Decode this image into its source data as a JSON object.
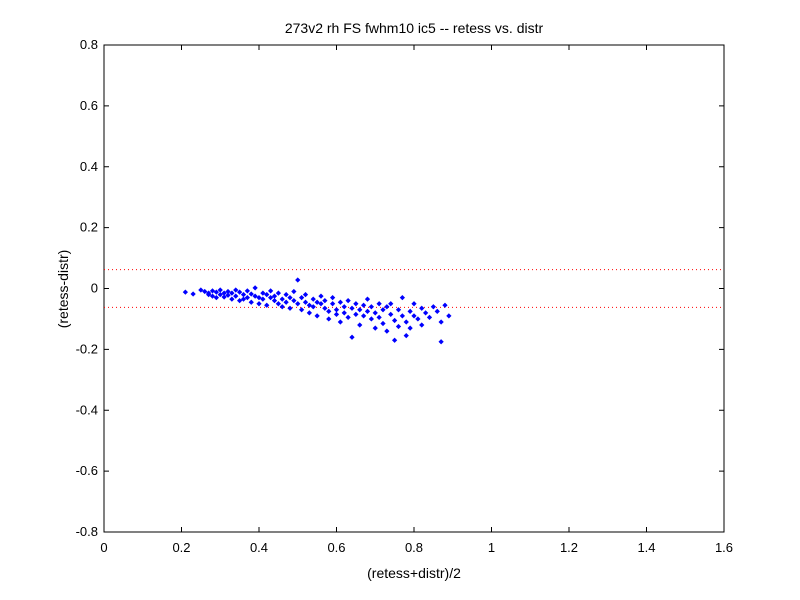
{
  "chart_data": {
    "type": "scatter",
    "title": "273v2 rh FS fwhm10 ic5 -- retess vs. distr",
    "xlabel": "(retess+distr)/2",
    "ylabel": "(retess-distr)",
    "xlim": [
      0,
      1.6
    ],
    "ylim": [
      -0.8,
      0.8
    ],
    "x_ticks": [
      "0",
      "0.2",
      "0.4",
      "0.6",
      "0.8",
      "1",
      "1.2",
      "1.4",
      "1.6"
    ],
    "y_ticks": [
      "0.8",
      "0.6",
      "0.4",
      "0.2",
      "0",
      "-0.2",
      "-0.4",
      "-0.6",
      "-0.8"
    ],
    "marker_color": "#0000ff",
    "reference_line_color": "#ff0000",
    "reference_lines_y": [
      0.062,
      -0.062
    ],
    "grid": false,
    "legend": "none",
    "series": [
      {
        "points": [
          [
            0.21,
            -0.012
          ],
          [
            0.23,
            -0.018
          ],
          [
            0.25,
            -0.005
          ],
          [
            0.26,
            -0.01
          ],
          [
            0.27,
            -0.015
          ],
          [
            0.27,
            -0.02
          ],
          [
            0.28,
            -0.008
          ],
          [
            0.28,
            -0.025
          ],
          [
            0.29,
            -0.012
          ],
          [
            0.29,
            -0.03
          ],
          [
            0.3,
            -0.02
          ],
          [
            0.3,
            -0.005
          ],
          [
            0.31,
            -0.015
          ],
          [
            0.31,
            -0.028
          ],
          [
            0.32,
            -0.01
          ],
          [
            0.32,
            -0.022
          ],
          [
            0.33,
            -0.035
          ],
          [
            0.33,
            -0.015
          ],
          [
            0.34,
            -0.005
          ],
          [
            0.34,
            -0.025
          ],
          [
            0.35,
            -0.04
          ],
          [
            0.35,
            -0.012
          ],
          [
            0.36,
            -0.02
          ],
          [
            0.36,
            -0.035
          ],
          [
            0.37,
            -0.008
          ],
          [
            0.37,
            -0.03
          ],
          [
            0.38,
            -0.045
          ],
          [
            0.38,
            -0.018
          ],
          [
            0.39,
            -0.025
          ],
          [
            0.39,
            0.002
          ],
          [
            0.4,
            -0.03
          ],
          [
            0.4,
            -0.05
          ],
          [
            0.41,
            -0.015
          ],
          [
            0.41,
            -0.035
          ],
          [
            0.42,
            -0.02
          ],
          [
            0.42,
            -0.055
          ],
          [
            0.43,
            -0.03
          ],
          [
            0.43,
            -0.008
          ],
          [
            0.44,
            -0.04
          ],
          [
            0.44,
            -0.025
          ],
          [
            0.45,
            -0.05
          ],
          [
            0.45,
            -0.015
          ],
          [
            0.46,
            -0.035
          ],
          [
            0.46,
            -0.06
          ],
          [
            0.47,
            -0.02
          ],
          [
            0.47,
            -0.045
          ],
          [
            0.48,
            -0.03
          ],
          [
            0.48,
            -0.065
          ],
          [
            0.49,
            -0.04
          ],
          [
            0.49,
            -0.01
          ],
          [
            0.5,
            -0.05
          ],
          [
            0.5,
            0.028
          ],
          [
            0.51,
            -0.03
          ],
          [
            0.51,
            -0.07
          ],
          [
            0.52,
            -0.045
          ],
          [
            0.52,
            -0.02
          ],
          [
            0.53,
            -0.055
          ],
          [
            0.53,
            -0.08
          ],
          [
            0.54,
            -0.035
          ],
          [
            0.54,
            -0.06
          ],
          [
            0.55,
            -0.045
          ],
          [
            0.55,
            -0.09
          ],
          [
            0.56,
            -0.05
          ],
          [
            0.56,
            -0.025
          ],
          [
            0.57,
            -0.065
          ],
          [
            0.57,
            -0.04
          ],
          [
            0.58,
            -0.075
          ],
          [
            0.58,
            -0.1
          ],
          [
            0.59,
            -0.05
          ],
          [
            0.59,
            -0.03
          ],
          [
            0.6,
            -0.07
          ],
          [
            0.6,
            -0.085
          ],
          [
            0.61,
            -0.045
          ],
          [
            0.61,
            -0.11
          ],
          [
            0.62,
            -0.06
          ],
          [
            0.62,
            -0.08
          ],
          [
            0.63,
            -0.04
          ],
          [
            0.63,
            -0.095
          ],
          [
            0.64,
            -0.065
          ],
          [
            0.64,
            -0.16
          ],
          [
            0.65,
            -0.05
          ],
          [
            0.65,
            -0.085
          ],
          [
            0.66,
            -0.07
          ],
          [
            0.66,
            -0.12
          ],
          [
            0.67,
            -0.055
          ],
          [
            0.67,
            -0.09
          ],
          [
            0.68,
            -0.075
          ],
          [
            0.68,
            -0.035
          ],
          [
            0.69,
            -0.1
          ],
          [
            0.69,
            -0.06
          ],
          [
            0.7,
            -0.08
          ],
          [
            0.7,
            -0.13
          ],
          [
            0.71,
            -0.05
          ],
          [
            0.71,
            -0.095
          ],
          [
            0.72,
            -0.07
          ],
          [
            0.72,
            -0.115
          ],
          [
            0.73,
            -0.06
          ],
          [
            0.73,
            -0.14
          ],
          [
            0.74,
            -0.085
          ],
          [
            0.74,
            -0.05
          ],
          [
            0.75,
            -0.105
          ],
          [
            0.75,
            -0.17
          ],
          [
            0.76,
            -0.07
          ],
          [
            0.76,
            -0.125
          ],
          [
            0.77,
            -0.09
          ],
          [
            0.77,
            -0.03
          ],
          [
            0.78,
            -0.11
          ],
          [
            0.78,
            -0.155
          ],
          [
            0.79,
            -0.075
          ],
          [
            0.79,
            -0.13
          ],
          [
            0.8,
            -0.09
          ],
          [
            0.8,
            -0.05
          ],
          [
            0.81,
            -0.1
          ],
          [
            0.82,
            -0.065
          ],
          [
            0.82,
            -0.12
          ],
          [
            0.83,
            -0.08
          ],
          [
            0.84,
            -0.095
          ],
          [
            0.85,
            -0.06
          ],
          [
            0.86,
            -0.075
          ],
          [
            0.87,
            -0.11
          ],
          [
            0.87,
            -0.175
          ],
          [
            0.88,
            -0.055
          ],
          [
            0.89,
            -0.09
          ]
        ]
      }
    ]
  }
}
